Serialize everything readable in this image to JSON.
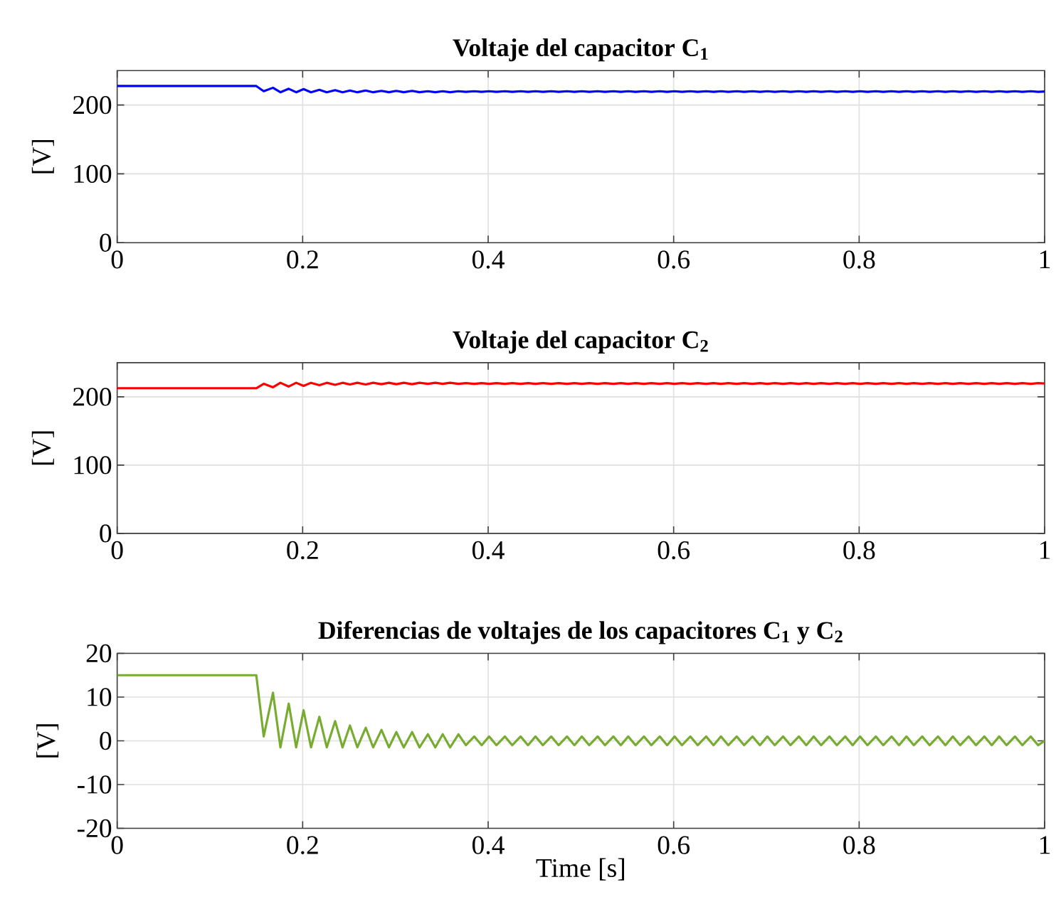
{
  "chart_data": [
    {
      "type": "line",
      "title": "Voltaje del capacitor C$_{1}$",
      "ylabel": "[V]",
      "xlim": [
        0,
        1
      ],
      "xticks": [
        0,
        0.2,
        0.4,
        0.6,
        0.8,
        1
      ],
      "ylim": [
        0,
        250
      ],
      "yticks": [
        0,
        100,
        200
      ],
      "grid": true,
      "x": [
        0,
        0.15,
        0.158,
        0.168,
        0.176,
        0.185,
        0.193,
        0.201,
        0.209,
        0.218,
        0.226,
        0.235,
        0.243,
        0.251,
        0.259,
        0.268,
        0.276,
        0.285,
        0.293,
        0.301,
        0.309,
        0.318,
        0.326,
        0.335,
        0.343,
        0.351,
        0.359,
        0.368,
        0.376,
        0.385,
        0.393,
        0.401,
        0.409,
        0.418,
        0.426,
        0.435,
        0.443,
        0.451,
        0.459,
        0.468,
        0.476,
        0.485,
        0.493,
        0.501,
        0.509,
        0.518,
        0.526,
        0.535,
        0.543,
        0.551,
        0.559,
        0.568,
        0.576,
        0.585,
        0.593,
        0.601,
        0.609,
        0.618,
        0.626,
        0.635,
        0.643,
        0.651,
        0.659,
        0.668,
        0.676,
        0.685,
        0.693,
        0.701,
        0.709,
        0.718,
        0.726,
        0.735,
        0.743,
        0.751,
        0.759,
        0.768,
        0.776,
        0.785,
        0.793,
        0.801,
        0.809,
        0.818,
        0.826,
        0.835,
        0.843,
        0.851,
        0.859,
        0.868,
        0.876,
        0.885,
        0.893,
        0.901,
        0.909,
        0.918,
        0.926,
        0.935,
        0.943,
        0.951,
        0.959,
        0.968,
        0.976,
        0.985,
        0.993,
        1
      ],
      "series": [
        {
          "color": "#0000ff",
          "values": [
            227.5,
            227.5,
            220,
            225,
            218.5,
            223.5,
            218.5,
            223,
            218.5,
            222,
            218.5,
            221.5,
            218.5,
            221,
            218.5,
            221,
            218.5,
            220.5,
            218.5,
            220.5,
            218.5,
            220.5,
            218.5,
            220,
            218.5,
            220,
            218.5,
            220,
            219,
            220,
            219,
            220,
            219,
            220,
            219,
            220,
            219,
            220,
            219,
            220,
            219,
            220,
            219,
            220,
            219,
            220,
            219,
            220,
            219,
            220,
            219,
            220,
            219,
            220,
            219,
            220,
            219,
            220,
            219,
            220,
            219,
            220,
            219,
            220,
            219,
            220,
            219,
            220,
            219,
            220,
            219,
            220,
            219,
            220,
            219,
            220,
            219,
            220,
            219,
            220,
            219,
            220,
            219,
            220,
            219,
            220,
            219,
            220,
            219,
            220,
            219,
            220,
            219,
            220,
            219,
            220,
            219,
            220,
            219,
            220,
            219,
            220,
            219,
            219.5
          ]
        }
      ]
    },
    {
      "type": "line",
      "title": "Voltaje del capacitor C$_{2}$",
      "ylabel": "[V]",
      "xlim": [
        0,
        1
      ],
      "xticks": [
        0,
        0.2,
        0.4,
        0.6,
        0.8,
        1
      ],
      "ylim": [
        0,
        250
      ],
      "yticks": [
        0,
        100,
        200
      ],
      "grid": true,
      "x": [
        0,
        0.15,
        0.158,
        0.168,
        0.176,
        0.185,
        0.193,
        0.201,
        0.209,
        0.218,
        0.226,
        0.235,
        0.243,
        0.251,
        0.259,
        0.268,
        0.276,
        0.285,
        0.293,
        0.301,
        0.309,
        0.318,
        0.326,
        0.335,
        0.343,
        0.351,
        0.359,
        0.368,
        0.376,
        0.385,
        0.393,
        0.401,
        0.409,
        0.418,
        0.426,
        0.435,
        0.443,
        0.451,
        0.459,
        0.468,
        0.476,
        0.485,
        0.493,
        0.501,
        0.509,
        0.518,
        0.526,
        0.535,
        0.543,
        0.551,
        0.559,
        0.568,
        0.576,
        0.585,
        0.593,
        0.601,
        0.609,
        0.618,
        0.626,
        0.635,
        0.643,
        0.651,
        0.659,
        0.668,
        0.676,
        0.685,
        0.693,
        0.701,
        0.709,
        0.718,
        0.726,
        0.735,
        0.743,
        0.751,
        0.759,
        0.768,
        0.776,
        0.785,
        0.793,
        0.801,
        0.809,
        0.818,
        0.826,
        0.835,
        0.843,
        0.851,
        0.859,
        0.868,
        0.876,
        0.885,
        0.893,
        0.901,
        0.909,
        0.918,
        0.926,
        0.935,
        0.943,
        0.951,
        0.959,
        0.968,
        0.976,
        0.985,
        0.993,
        1
      ],
      "series": [
        {
          "color": "#ff0000",
          "values": [
            212.5,
            212.5,
            219,
            214,
            220.5,
            215,
            220.5,
            216,
            220.5,
            217,
            220.5,
            217.5,
            220.5,
            218,
            220.5,
            218,
            220.5,
            218.5,
            220.5,
            218.5,
            220.5,
            218.5,
            220.5,
            219,
            220.5,
            219,
            220.5,
            219,
            220,
            219,
            220,
            219,
            220,
            219,
            220,
            219,
            220,
            219,
            220,
            219,
            220,
            219,
            220,
            219,
            220,
            219,
            220,
            219,
            220,
            219,
            220,
            219,
            220,
            219,
            220,
            219,
            220,
            219,
            220,
            219,
            220,
            219,
            220,
            219,
            220,
            219,
            220,
            219,
            220,
            219,
            220,
            219,
            220,
            219,
            220,
            219,
            220,
            219,
            220,
            219,
            220,
            219,
            220,
            219,
            220,
            219,
            220,
            219,
            220,
            219,
            220,
            219,
            220,
            219,
            220,
            219,
            220,
            219,
            220,
            219,
            220,
            219,
            220,
            219.5
          ]
        }
      ]
    },
    {
      "type": "line",
      "title": "Diferencias de voltajes de los capacitores C$_{1}$ y C$_{2}$",
      "xlabel": "Time [s]",
      "ylabel": "[V]",
      "xlim": [
        0,
        1
      ],
      "xticks": [
        0,
        0.2,
        0.4,
        0.6,
        0.8,
        1
      ],
      "ylim": [
        -20,
        20
      ],
      "yticks": [
        -20,
        -10,
        0,
        10,
        20
      ],
      "grid": true,
      "x": [
        0,
        0.15,
        0.158,
        0.168,
        0.176,
        0.185,
        0.193,
        0.201,
        0.209,
        0.218,
        0.226,
        0.235,
        0.243,
        0.251,
        0.259,
        0.268,
        0.276,
        0.285,
        0.293,
        0.301,
        0.309,
        0.318,
        0.326,
        0.335,
        0.343,
        0.351,
        0.359,
        0.368,
        0.376,
        0.385,
        0.393,
        0.401,
        0.409,
        0.418,
        0.426,
        0.435,
        0.443,
        0.451,
        0.459,
        0.468,
        0.476,
        0.485,
        0.493,
        0.501,
        0.509,
        0.518,
        0.526,
        0.535,
        0.543,
        0.551,
        0.559,
        0.568,
        0.576,
        0.585,
        0.593,
        0.601,
        0.609,
        0.618,
        0.626,
        0.635,
        0.643,
        0.651,
        0.659,
        0.668,
        0.676,
        0.685,
        0.693,
        0.701,
        0.709,
        0.718,
        0.726,
        0.735,
        0.743,
        0.751,
        0.759,
        0.768,
        0.776,
        0.785,
        0.793,
        0.801,
        0.809,
        0.818,
        0.826,
        0.835,
        0.843,
        0.851,
        0.859,
        0.868,
        0.876,
        0.885,
        0.893,
        0.901,
        0.909,
        0.918,
        0.926,
        0.935,
        0.943,
        0.951,
        0.959,
        0.968,
        0.976,
        0.985,
        0.993,
        1
      ],
      "series": [
        {
          "color": "#77ac30",
          "values": [
            15,
            15,
            1,
            11,
            -1.5,
            8.5,
            -1.5,
            7,
            -1.5,
            5.5,
            -1.5,
            4.5,
            -1.5,
            3.5,
            -1.5,
            3,
            -1.5,
            2.5,
            -1.5,
            2,
            -1.5,
            2,
            -1.5,
            1.5,
            -1.5,
            1.5,
            -1.5,
            1.5,
            -1,
            1,
            -1,
            1,
            -1,
            1,
            -1,
            1,
            -1,
            1,
            -1,
            1,
            -1,
            1,
            -1,
            1,
            -1,
            1,
            -1,
            1,
            -1,
            1,
            -1,
            1,
            -1,
            1,
            -1,
            1,
            -1,
            1,
            -1,
            1,
            -1,
            1,
            -1,
            1,
            -1,
            1,
            -1,
            1,
            -1,
            1,
            -1,
            1,
            -1,
            1,
            -1,
            1,
            -1,
            1,
            -1,
            1,
            -1,
            1,
            -1,
            1,
            -1,
            1,
            -1,
            1,
            -1,
            1,
            -1,
            1,
            -1,
            1,
            -1,
            1,
            -1,
            1,
            -1,
            1,
            -1,
            1,
            -1,
            0
          ]
        }
      ]
    }
  ]
}
